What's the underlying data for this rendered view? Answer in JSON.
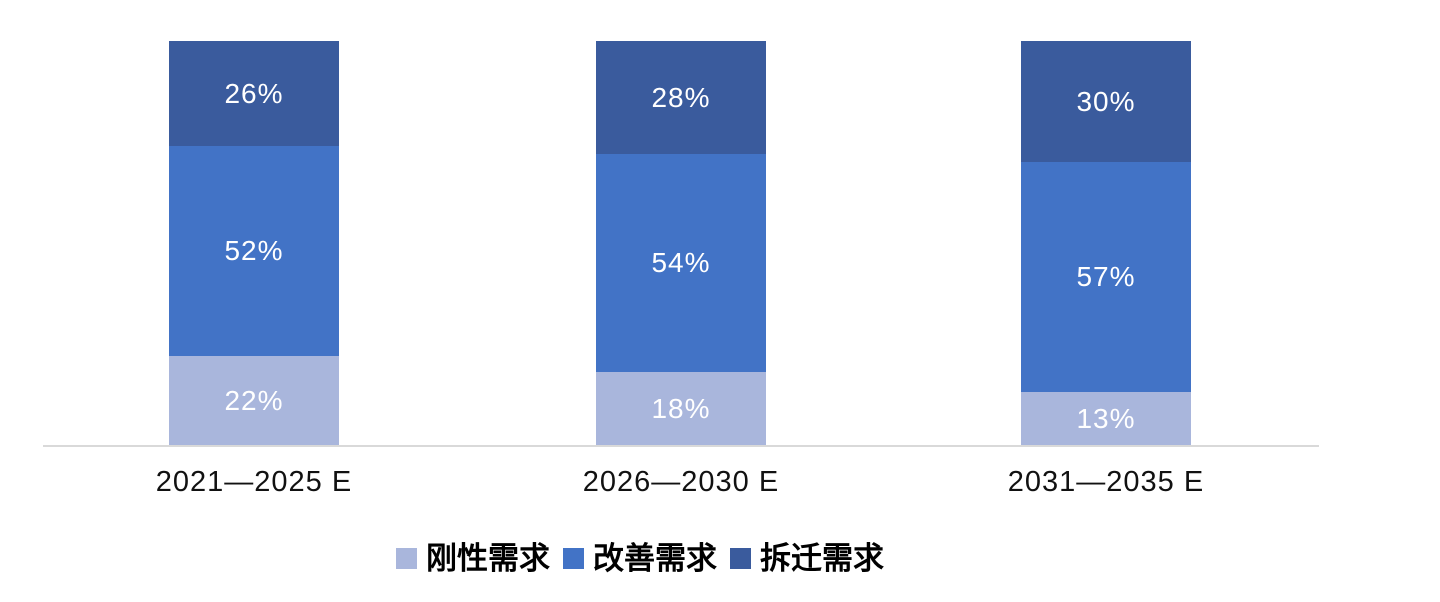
{
  "chart_data": {
    "type": "bar",
    "subtype": "stacked-100-percent",
    "orientation": "vertical",
    "title": "",
    "xlabel": "",
    "ylabel": "",
    "ylim": [
      0,
      100
    ],
    "grid": false,
    "legend_position": "bottom",
    "categories": [
      "2021—2025 E",
      "2026—2030 E",
      "2031—2035 E"
    ],
    "series": [
      {
        "name": "刚性需求",
        "color": "#A9B6DC",
        "values": [
          22,
          18,
          13
        ]
      },
      {
        "name": "改善需求",
        "color": "#4273C6",
        "values": [
          52,
          54,
          57
        ]
      },
      {
        "name": "拆迁需求",
        "color": "#3A5B9D",
        "values": [
          26,
          28,
          30
        ]
      }
    ],
    "value_suffix": "%",
    "value_label_color": "#FFFFFF",
    "axis_line_color": "#D9D9D9",
    "axis_label_color": "#111111",
    "legend_text_color": "#000000",
    "background": "#FFFFFF"
  }
}
